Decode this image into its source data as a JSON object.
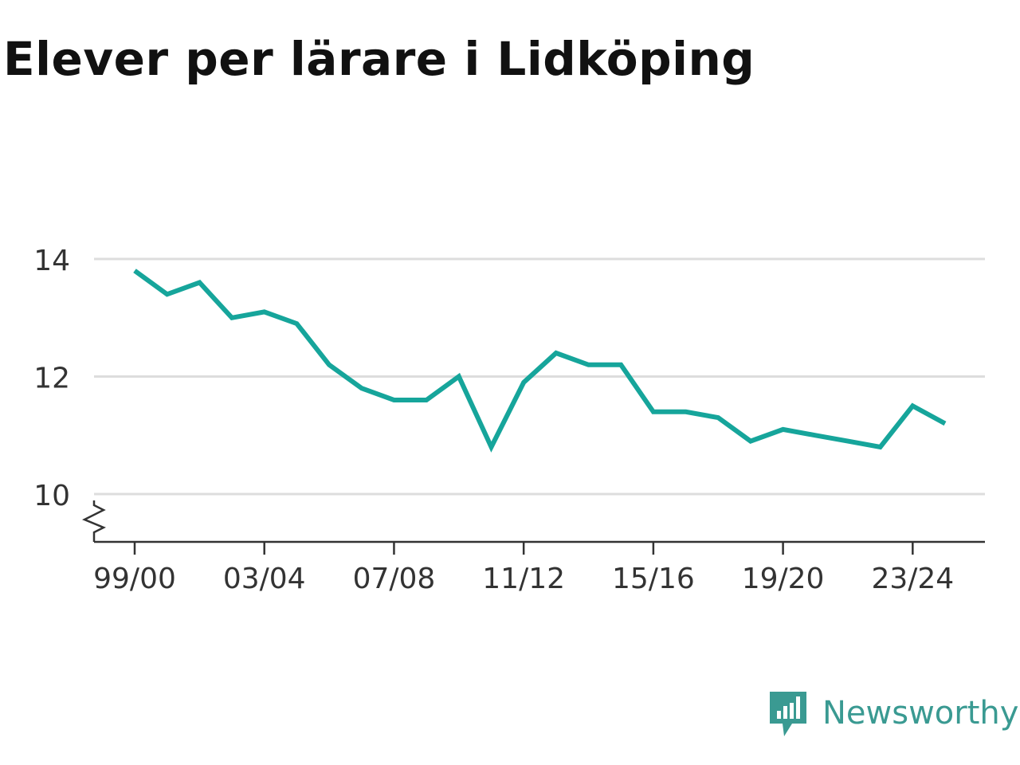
{
  "title": "Elever per lärare i Lidköping",
  "brand": {
    "name": "Newsworthy",
    "icon": "newsworthy-logo-icon"
  },
  "colors": {
    "line": "#16a59b",
    "grid": "#dddddd",
    "axis": "#333333",
    "text": "#333333",
    "brand": "#3a9a92"
  },
  "chart_data": {
    "type": "line",
    "title": "Elever per lärare i Lidköping",
    "xlabel": "",
    "ylabel": "",
    "x": [
      "99/00",
      "00/01",
      "01/02",
      "02/03",
      "03/04",
      "04/05",
      "05/06",
      "06/07",
      "07/08",
      "08/09",
      "09/10",
      "10/11",
      "11/12",
      "12/13",
      "13/14",
      "14/15",
      "15/16",
      "16/17",
      "17/18",
      "18/19",
      "19/20",
      "20/21",
      "21/22",
      "22/23",
      "23/24",
      "24/25"
    ],
    "x_tick_labels": [
      "99/00",
      "03/04",
      "07/08",
      "11/12",
      "15/16",
      "19/20",
      "23/24"
    ],
    "series": [
      {
        "values": [
          13.8,
          13.4,
          13.6,
          13.0,
          13.1,
          12.9,
          12.2,
          11.8,
          11.6,
          11.6,
          12.0,
          10.8,
          11.9,
          12.4,
          12.2,
          12.2,
          11.4,
          11.4,
          11.3,
          10.9,
          11.1,
          11.0,
          10.9,
          10.8,
          11.5,
          11.2
        ]
      }
    ],
    "yticks": [
      10,
      12,
      14
    ],
    "ylim": [
      9.2,
      14.6
    ],
    "axis_break": true,
    "grid": true,
    "legend": "none"
  }
}
